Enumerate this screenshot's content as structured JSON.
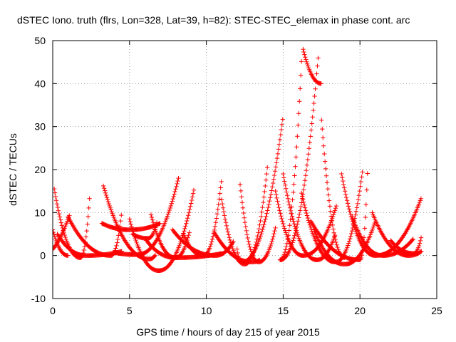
{
  "chart_data": {
    "type": "scatter",
    "title": "dSTEC Iono. truth (flrs, Lon=328, Lat=39, h=82): STEC-STEC_elemax in phase cont. arc",
    "xlabel": "GPS time / hours of day 215 of year 2015",
    "ylabel": "dSTEC  / TECUs",
    "xlim": [
      0,
      25
    ],
    "ylim": [
      -10,
      50
    ],
    "xticks": [
      0,
      5,
      10,
      15,
      20,
      25
    ],
    "yticks": [
      -10,
      0,
      10,
      20,
      30,
      40,
      50
    ],
    "grid": true,
    "marker": "+",
    "color": "#ff0000",
    "series_arcs": [
      {
        "t0": -3.0,
        "t1": 1.1,
        "tmin": -1.0,
        "ampL": 3,
        "ampR": 10,
        "base": -0.5
      },
      {
        "t0": 0.0,
        "t1": 1.0,
        "tmin": 1.0,
        "ampL": 6,
        "ampR": 0,
        "base": 0
      },
      {
        "t0": 0.1,
        "t1": 2.4,
        "tmin": 1.8,
        "ampL": 16,
        "ampR": 14,
        "base": -0.5
      },
      {
        "t0": 0.3,
        "t1": 4.5,
        "tmin": 2.2,
        "ampL": 5,
        "ampR": 1,
        "base": 0
      },
      {
        "t0": 1.0,
        "t1": 4.5,
        "tmin": 3.8,
        "ampL": 9,
        "ampR": 10.5,
        "base": 0
      },
      {
        "t0": 3.3,
        "t1": 6.7,
        "tmin": 6.3,
        "ampL": 17,
        "ampR": 1.0,
        "base": -0.8
      },
      {
        "t0": 4.0,
        "t1": 8.2,
        "tmin": 5.5,
        "ampL": 0.5,
        "ampR": 18,
        "base": 0.2
      },
      {
        "t0": 3.2,
        "t1": 7.0,
        "tmin": 5.0,
        "ampL": 1.5,
        "ampR": 1.5,
        "base": 6
      },
      {
        "t0": 5.0,
        "t1": 9.2,
        "tmin": 6.9,
        "ampL": 12,
        "ampR": 19,
        "base": -3.5
      },
      {
        "t0": 5.2,
        "t1": 6.8,
        "tmin": 6.2,
        "ampL": 1,
        "ampR": 4,
        "base": 4
      },
      {
        "t0": 6.1,
        "t1": 8.9,
        "tmin": 8.0,
        "ampL": 4,
        "ampR": 6,
        "base": -0.5
      },
      {
        "t0": 6.4,
        "t1": 11.0,
        "tmin": 8.0,
        "ampL": 10,
        "ampR": 1,
        "base": -0.5
      },
      {
        "t0": 7.8,
        "t1": 11.8,
        "tmin": 10.6,
        "ampL": 6,
        "ampR": 3.5,
        "base": 0
      },
      {
        "t0": 8.5,
        "t1": 11.0,
        "tmin": 9.8,
        "ampL": 5,
        "ampR": 18,
        "base": 0
      },
      {
        "t0": 10.5,
        "t1": 13.5,
        "tmin": 13.0,
        "ampL": 7,
        "ampR": 0.5,
        "base": -1.5
      },
      {
        "t0": 11.0,
        "t1": 14.0,
        "tmin": 12.5,
        "ampL": 15,
        "ampR": 23.5,
        "base": -2
      },
      {
        "t0": 12.0,
        "t1": 15.0,
        "tmin": 12.3,
        "ampL": 3,
        "ampR": 34,
        "base": -1.5
      },
      {
        "t0": 12.2,
        "t1": 14.5,
        "tmin": 13.4,
        "ampL": 18,
        "ampR": 8,
        "base": -1.5
      },
      {
        "t0": 14.5,
        "t1": 18.5,
        "tmin": 16.3,
        "ampL": 15,
        "ampR": 12,
        "base": 0
      },
      {
        "t0": 15.0,
        "t1": 18.4,
        "tmin": 17.2,
        "ampL": 20,
        "ampR": 6,
        "base": -1
      },
      {
        "t0": 14.8,
        "t1": 16.2,
        "tmin": 14.8,
        "ampL": 0,
        "ampR": 46.5,
        "base": -1
      },
      {
        "t0": 14.8,
        "t1": 17.3,
        "tmin": 14.8,
        "ampL": 0,
        "ampR": 48,
        "base": -1
      },
      {
        "t0": 16.3,
        "t1": 17.5,
        "tmin": 17.5,
        "ampL": 8,
        "ampR": 0,
        "base": 40
      },
      {
        "t0": 17.5,
        "t1": 19.0,
        "tmin": 19.0,
        "ampL": 32,
        "ampR": 0,
        "base": -0.5
      },
      {
        "t0": 16.2,
        "t1": 20.2,
        "tmin": 18.4,
        "ampL": 16,
        "ampR": 22,
        "base": -1.5
      },
      {
        "t0": 16.8,
        "t1": 20.5,
        "tmin": 20.0,
        "ampL": 9,
        "ampR": 21,
        "base": -1
      },
      {
        "t0": 17.0,
        "t1": 21.0,
        "tmin": 19.0,
        "ampL": 8,
        "ampR": 10,
        "base": -2
      },
      {
        "t0": 18.8,
        "t1": 24.0,
        "tmin": 21.0,
        "ampL": 19,
        "ampR": 13.5,
        "base": 0
      },
      {
        "t0": 19.5,
        "t1": 23.5,
        "tmin": 21.5,
        "ampL": 9,
        "ampR": 4,
        "base": 0
      },
      {
        "t0": 20.8,
        "t1": 24.0,
        "tmin": 23.2,
        "ampL": 10,
        "ampR": 1,
        "base": 0
      },
      {
        "t0": 22.0,
        "t1": 24.0,
        "tmin": 23.5,
        "ampL": 3,
        "ampR": 4,
        "base": 0.5
      }
    ]
  }
}
